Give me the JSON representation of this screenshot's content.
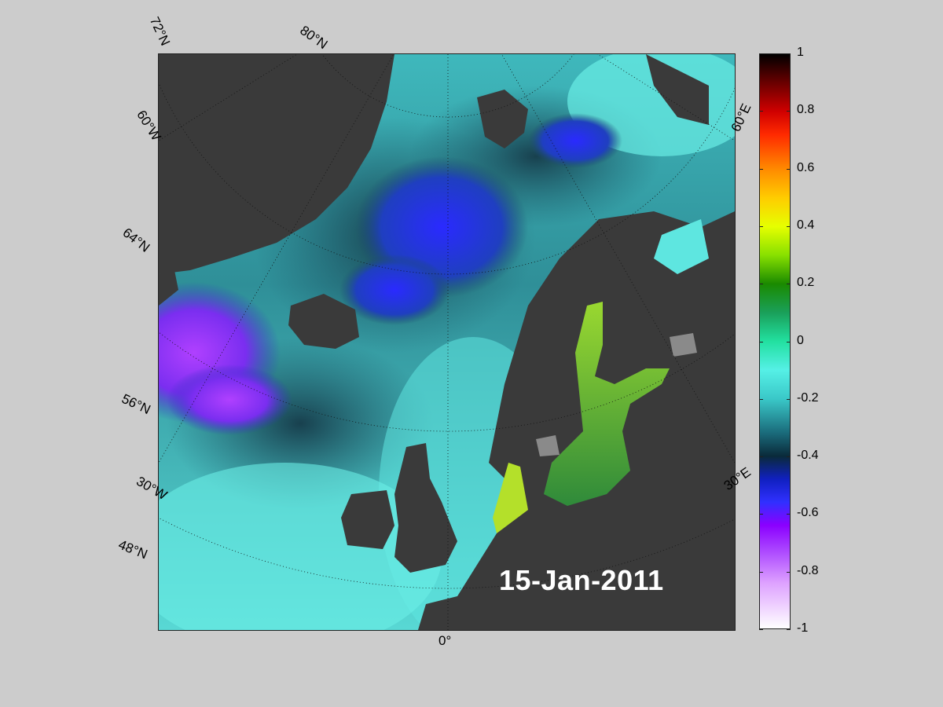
{
  "map": {
    "date": "15-Jan-2011",
    "meridian_label": "0°",
    "lat_labels": [
      "72°N",
      "80°N",
      "64°N",
      "56°N",
      "48°N"
    ],
    "lon_labels_left": [
      "60°W",
      "30°W"
    ],
    "lon_labels_right": [
      "60°E",
      "30°E"
    ],
    "colors": {
      "land": "#3a3a3a",
      "ice_land": "#8a8a8a",
      "ocean_light": "#5ee6e0",
      "ocean_mid": "#2fa8a8",
      "ocean_dark": "#1d4a5a",
      "deep_blue": "#2222dd",
      "purple": "#9933ee",
      "baltic_green": "#3a9a3a",
      "yellow_green": "#9ad82a"
    }
  },
  "colorbar": {
    "ticks": [
      "1",
      "0.8",
      "0.6",
      "0.4",
      "0.2",
      "0",
      "-0.2",
      "-0.4",
      "-0.6",
      "-0.8",
      "-1"
    ],
    "min": -1,
    "max": 1
  }
}
